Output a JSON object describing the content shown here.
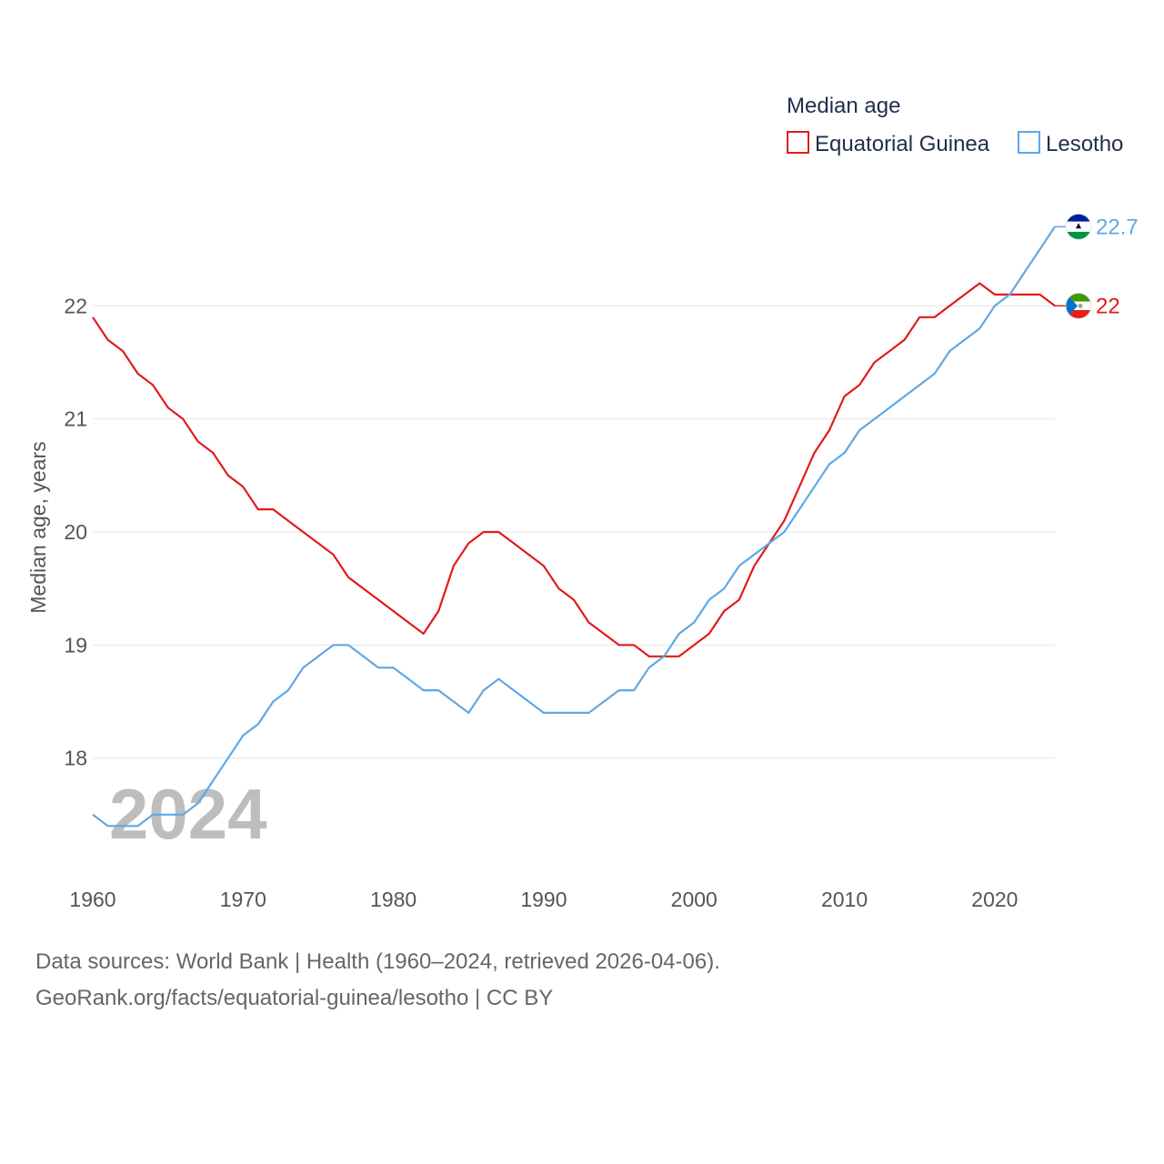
{
  "chart_data": {
    "type": "line",
    "title": "Median age",
    "xlabel": "",
    "ylabel": "Median age, years",
    "xlim": [
      1960,
      2024
    ],
    "ylim": [
      17,
      23
    ],
    "x_ticks": [
      1960,
      1970,
      1980,
      1990,
      2000,
      2010,
      2020
    ],
    "y_ticks": [
      18,
      19,
      20,
      21,
      22
    ],
    "grid": true,
    "legend_position": "top-right",
    "year_watermark": "2024",
    "x": [
      1960,
      1961,
      1962,
      1963,
      1964,
      1965,
      1966,
      1967,
      1968,
      1969,
      1970,
      1971,
      1972,
      1973,
      1974,
      1975,
      1976,
      1977,
      1978,
      1979,
      1980,
      1981,
      1982,
      1983,
      1984,
      1985,
      1986,
      1987,
      1988,
      1989,
      1990,
      1991,
      1992,
      1993,
      1994,
      1995,
      1996,
      1997,
      1998,
      1999,
      2000,
      2001,
      2002,
      2003,
      2004,
      2005,
      2006,
      2007,
      2008,
      2009,
      2010,
      2011,
      2012,
      2013,
      2014,
      2015,
      2016,
      2017,
      2018,
      2019,
      2020,
      2021,
      2022,
      2023,
      2024
    ],
    "series": [
      {
        "name": "Equatorial Guinea",
        "color": "#e31a1c",
        "end_label": "22",
        "flag": "equatorial-guinea-flag-icon",
        "values": [
          21.9,
          21.7,
          21.6,
          21.4,
          21.3,
          21.1,
          21.0,
          20.8,
          20.7,
          20.5,
          20.4,
          20.2,
          20.2,
          20.1,
          20.0,
          19.9,
          19.8,
          19.6,
          19.5,
          19.4,
          19.3,
          19.2,
          19.1,
          19.3,
          19.7,
          19.9,
          20.0,
          20.0,
          19.9,
          19.8,
          19.7,
          19.5,
          19.4,
          19.2,
          19.1,
          19.0,
          19.0,
          18.9,
          18.9,
          18.9,
          19.0,
          19.1,
          19.3,
          19.4,
          19.7,
          19.9,
          20.1,
          20.4,
          20.7,
          20.9,
          21.2,
          21.3,
          21.5,
          21.6,
          21.7,
          21.9,
          21.9,
          22.0,
          22.1,
          22.2,
          22.1,
          22.1,
          22.1,
          22.1,
          22.0
        ]
      },
      {
        "name": "Lesotho",
        "color": "#5fa8e6",
        "end_label": "22.7",
        "flag": "lesotho-flag-icon",
        "values": [
          17.5,
          17.4,
          17.4,
          17.4,
          17.5,
          17.5,
          17.5,
          17.6,
          17.8,
          18.0,
          18.2,
          18.3,
          18.5,
          18.6,
          18.8,
          18.9,
          19.0,
          19.0,
          18.9,
          18.8,
          18.8,
          18.7,
          18.6,
          18.6,
          18.5,
          18.4,
          18.6,
          18.7,
          18.6,
          18.5,
          18.4,
          18.4,
          18.4,
          18.4,
          18.5,
          18.6,
          18.6,
          18.8,
          18.9,
          19.1,
          19.2,
          19.4,
          19.5,
          19.7,
          19.8,
          19.9,
          20.0,
          20.2,
          20.4,
          20.6,
          20.7,
          20.9,
          21.0,
          21.1,
          21.2,
          21.3,
          21.4,
          21.6,
          21.7,
          21.8,
          22.0,
          22.1,
          22.3,
          22.5,
          22.7
        ]
      }
    ]
  },
  "footer": {
    "sources": "Data sources: World Bank | Health (1960–2024, retrieved 2026-04-06).",
    "url": "GeoRank.org/facts/equatorial-guinea/lesotho | CC BY"
  }
}
